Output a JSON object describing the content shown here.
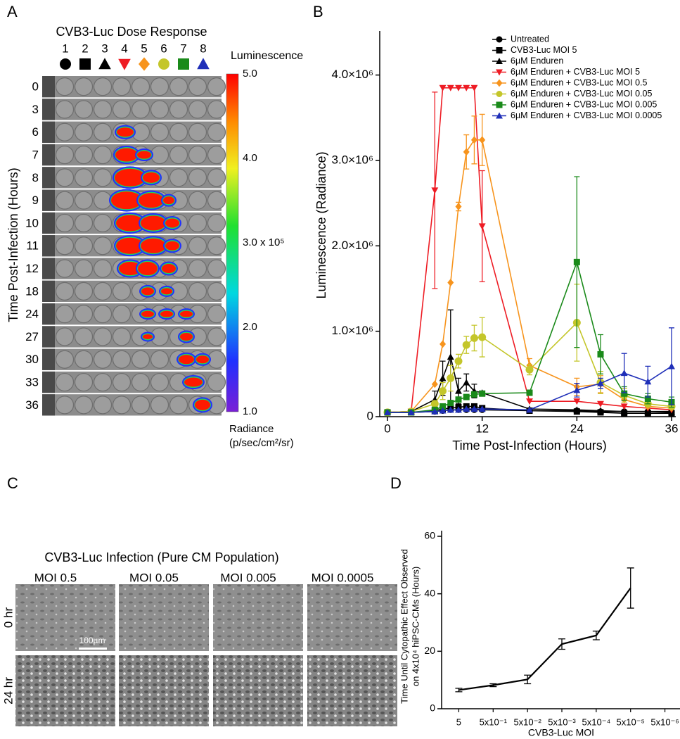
{
  "panel_letters": [
    "A",
    "B",
    "C",
    "D"
  ],
  "panel_a": {
    "title": "CVB3-Luc Dose Response",
    "wells": [
      1,
      2,
      3,
      4,
      5,
      6,
      7,
      8
    ],
    "well_markers": [
      {
        "shape": "circle",
        "color": "#000000"
      },
      {
        "shape": "square",
        "color": "#000000"
      },
      {
        "shape": "triangle",
        "color": "#000000"
      },
      {
        "shape": "triangle-down",
        "color": "#ee1c24"
      },
      {
        "shape": "diamond",
        "color": "#f7941d"
      },
      {
        "shape": "circle",
        "color": "#c4c62a"
      },
      {
        "shape": "square",
        "color": "#1a8a1a"
      },
      {
        "shape": "triangle",
        "color": "#1f2fb8"
      }
    ],
    "hours": [
      0,
      3,
      6,
      7,
      8,
      9,
      10,
      11,
      12,
      18,
      24,
      27,
      30,
      33,
      36
    ],
    "y_label": "Time Post-Infection (Hours)",
    "colorbar_title": "Luminescence",
    "colorbar_labels": [
      "5.0",
      "4.0",
      "3.0 x 10⁵",
      "2.0",
      "1.0"
    ],
    "colorbar_unit": [
      "Radiance",
      "(p/sec/cm²/sr)"
    ]
  },
  "chart_data": [
    {
      "type": "line",
      "x_label": "Time Post-Infection (Hours)",
      "y_label": "Luminescence (Radiance)",
      "x": [
        0,
        3,
        6,
        7,
        8,
        9,
        10,
        11,
        12,
        18,
        24,
        27,
        30,
        33,
        36
      ],
      "xlim": [
        0,
        36
      ],
      "xticks": [
        0,
        12,
        24,
        36
      ],
      "ylim": [
        0,
        4450000
      ],
      "yticks": [
        0,
        {
          "value": 1000000,
          "label": "1.0×10⁶"
        },
        {
          "value": 2000000,
          "label": "2.0×10⁶"
        },
        {
          "value": 3000000,
          "label": "3.0×10⁶"
        },
        {
          "value": 4000000,
          "label": "4.0×10⁶"
        }
      ],
      "legend": "upper right",
      "series": [
        {
          "name": "Untreated",
          "color": "#000000",
          "marker": "circle",
          "values": [
            50000,
            50000,
            60000,
            70000,
            80000,
            80000,
            80000,
            80000,
            80000,
            70000,
            70000,
            60000,
            60000,
            60000,
            60000
          ],
          "errors": [
            null,
            null,
            null,
            null,
            null,
            null,
            null,
            null,
            null,
            null,
            null,
            null,
            null,
            null,
            null
          ]
        },
        {
          "name": "CVB3-Luc MOI 5",
          "color": "#000000",
          "marker": "square",
          "values": [
            50000,
            50000,
            70000,
            90000,
            100000,
            110000,
            120000,
            120000,
            100000,
            70000,
            60000,
            50000,
            40000,
            40000,
            40000
          ],
          "errors": [
            null,
            null,
            null,
            null,
            null,
            null,
            null,
            null,
            null,
            null,
            null,
            null,
            null,
            null,
            null
          ]
        },
        {
          "name": "6µM Enduren",
          "color": "#000000",
          "marker": "triangle",
          "values": [
            50000,
            60000,
            200000,
            450000,
            700000,
            300000,
            400000,
            300000,
            280000,
            90000,
            80000,
            70000,
            60000,
            60000,
            50000
          ],
          "errors": [
            null,
            null,
            100000,
            200000,
            550000,
            150000,
            100000,
            80000,
            null,
            null,
            null,
            null,
            null,
            null,
            null
          ]
        },
        {
          "name": "6µM Enduren + CVB3-Luc MOI 5",
          "color": "#ee1c24",
          "marker": "triangle-down",
          "values": [
            50000,
            60000,
            2650000,
            3850000,
            3850000,
            3850000,
            3850000,
            3850000,
            2230000,
            180000,
            180000,
            150000,
            120000,
            100000,
            80000
          ],
          "errors": [
            null,
            null,
            1150000,
            null,
            null,
            null,
            null,
            null,
            650000,
            null,
            null,
            null,
            null,
            null,
            null
          ]
        },
        {
          "name": "6µM Enduren + CVB3-Luc MOI 0.5",
          "color": "#f7941d",
          "marker": "diamond",
          "values": [
            50000,
            60000,
            380000,
            850000,
            1570000,
            2460000,
            3100000,
            3240000,
            3240000,
            600000,
            350000,
            380000,
            200000,
            120000,
            100000
          ],
          "errors": [
            null,
            null,
            null,
            null,
            null,
            50000,
            200000,
            280000,
            300000,
            80000,
            100000,
            100000,
            null,
            null,
            null
          ]
        },
        {
          "name": "6µM Enduren + CVB3-Luc MOI 0.05",
          "color": "#c4c62a",
          "marker": "circle",
          "values": [
            50000,
            60000,
            150000,
            300000,
            450000,
            650000,
            840000,
            920000,
            930000,
            550000,
            1100000,
            400000,
            250000,
            150000,
            120000
          ],
          "errors": [
            null,
            null,
            null,
            100000,
            150000,
            80000,
            100000,
            150000,
            230000,
            60000,
            450000,
            130000,
            80000,
            null,
            null
          ]
        },
        {
          "name": "6µM Enduren + CVB3-Luc MOI 0.005",
          "color": "#1a8a1a",
          "marker": "square",
          "values": [
            50000,
            50000,
            80000,
            120000,
            160000,
            200000,
            230000,
            260000,
            270000,
            280000,
            1810000,
            730000,
            270000,
            210000,
            170000
          ],
          "errors": [
            null,
            null,
            null,
            null,
            null,
            null,
            null,
            null,
            null,
            null,
            1000000,
            230000,
            80000,
            60000,
            60000
          ]
        },
        {
          "name": "6µM Enduren + CVB3-Luc MOI 0.0005",
          "color": "#1f2fb8",
          "marker": "triangle",
          "values": [
            50000,
            50000,
            60000,
            70000,
            80000,
            80000,
            90000,
            90000,
            90000,
            80000,
            310000,
            390000,
            510000,
            410000,
            590000
          ],
          "errors": [
            null,
            null,
            null,
            null,
            null,
            null,
            null,
            null,
            null,
            null,
            80000,
            60000,
            230000,
            180000,
            450000
          ]
        }
      ]
    },
    {
      "type": "line",
      "x_label": "CVB3-Luc MOI",
      "y_label": [
        "Time Until Cytopathic Effect Observed",
        "on 4x10⁴ hiPSC-CMs (Hours)"
      ],
      "categories": [
        "5",
        "5x10⁻¹",
        "5x10⁻²",
        "5x10⁻³",
        "5x10⁻⁴",
        "5x10⁻⁵",
        "5x10⁻⁶"
      ],
      "ylim": [
        0,
        60
      ],
      "yticks": [
        0,
        20,
        40,
        60
      ],
      "color": "#000000",
      "values": [
        6.5,
        8.2,
        10.2,
        22.5,
        25.5,
        42,
        null
      ],
      "errors": [
        0.6,
        0.5,
        1.5,
        1.8,
        1.5,
        7,
        null
      ]
    }
  ],
  "panel_c": {
    "title": "CVB3-Luc Infection (Pure CM Population)",
    "columns": [
      "MOI 0.5",
      "MOI 0.05",
      "MOI 0.005",
      "MOI 0.0005"
    ],
    "rows": [
      "0 hr",
      "24 hr"
    ],
    "scale_bar": "100µm"
  }
}
